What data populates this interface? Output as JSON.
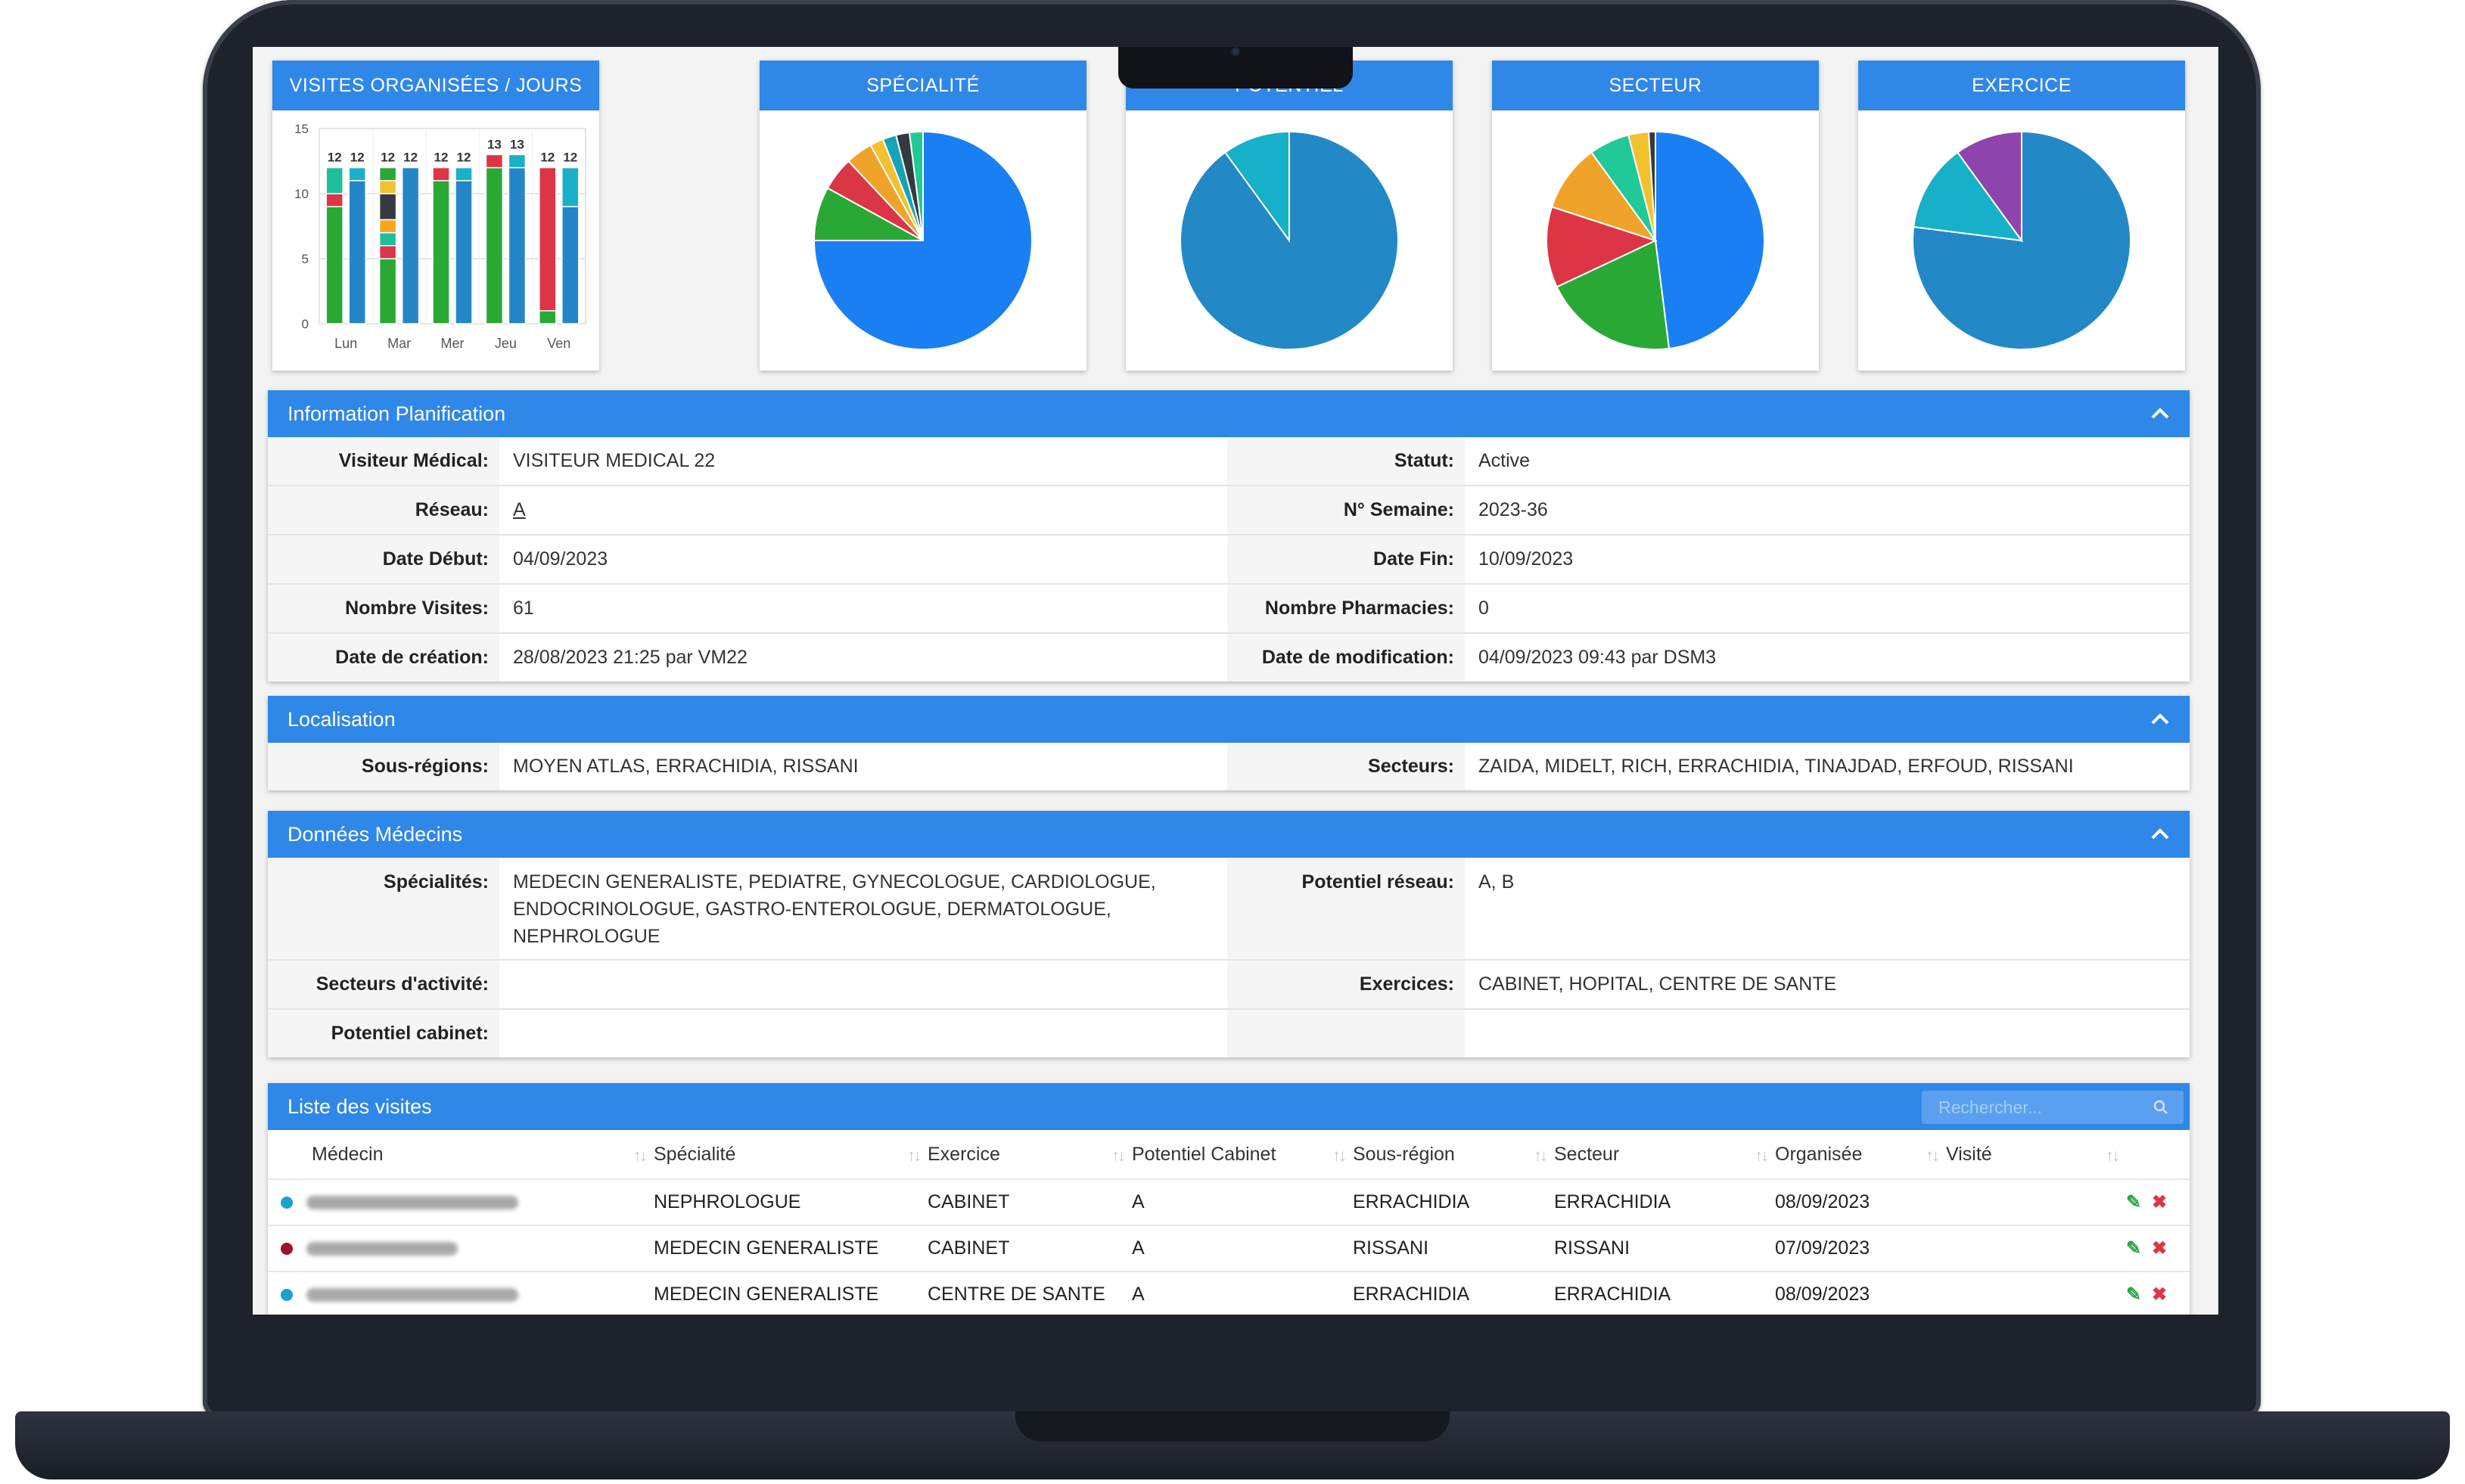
{
  "charts": {
    "bar_title": "VISITES ORGANISÉES / JOURS",
    "pie1_title": "SPÉCIALITÉ",
    "pie2_title": "POTENTIEL",
    "pie3_title": "SECTEUR",
    "pie4_title": "EXERCICE"
  },
  "chart_data": [
    {
      "type": "bar",
      "title": "VISITES ORGANISÉES / JOURS",
      "categories": [
        "Lun",
        "Mar",
        "Mer",
        "Jeu",
        "Ven"
      ],
      "ylim": [
        0,
        15
      ],
      "yticks": [
        "15",
        "10",
        "5",
        "0"
      ],
      "stacked": true,
      "bars_per_category": [
        {
          "totals": [
            12,
            12
          ],
          "left_segments": [
            9,
            1,
            2
          ],
          "right_segments": [
            11,
            1
          ]
        },
        {
          "totals": [
            12,
            12
          ],
          "left_segments": [
            5,
            1,
            1,
            1,
            2,
            1,
            1
          ],
          "right_segments": [
            12
          ]
        },
        {
          "totals": [
            12,
            12
          ],
          "left_segments": [
            11,
            1
          ],
          "right_segments": [
            11,
            1
          ]
        },
        {
          "totals": [
            13,
            13
          ],
          "left_segments": [
            12,
            1
          ],
          "right_segments": [
            12,
            1
          ]
        },
        {
          "totals": [
            12,
            12
          ],
          "left_segments": [
            1,
            11
          ],
          "right_segments": [
            9,
            3
          ]
        }
      ],
      "segment_colors_left": [
        "#2aa836",
        "#dc3545",
        "#1fbf9c",
        "#f5a623",
        "#343a40",
        "#f2c12e"
      ],
      "segment_colors_right": [
        "#2586c7",
        "#1bb0c9"
      ]
    },
    {
      "type": "pie",
      "title": "SPÉCIALITÉ",
      "values": [
        75,
        8,
        5,
        4,
        2,
        2,
        2,
        2
      ],
      "colors": [
        "#1a7ff2",
        "#2aa836",
        "#dc3545",
        "#f0a32a",
        "#f2c12e",
        "#17a2b8",
        "#343a40",
        "#20c997"
      ]
    },
    {
      "type": "pie",
      "title": "POTENTIEL",
      "values": [
        90,
        10
      ],
      "colors": [
        "#2289c6",
        "#17b0c9"
      ]
    },
    {
      "type": "pie",
      "title": "SECTEUR",
      "values": [
        48,
        20,
        12,
        10,
        6,
        3,
        1
      ],
      "colors": [
        "#1a7ff2",
        "#2aa836",
        "#dc3545",
        "#f0a32a",
        "#20c997",
        "#f2c12e",
        "#343a40"
      ]
    },
    {
      "type": "pie",
      "title": "EXERCICE",
      "values": [
        77,
        13,
        10
      ],
      "colors": [
        "#2289c6",
        "#17b0c9",
        "#8e44ad"
      ]
    }
  ],
  "planification": {
    "title": "Information Planification",
    "visiteur_label": "Visiteur Médical:",
    "visiteur": "VISITEUR MEDICAL 22",
    "statut_label": "Statut:",
    "statut": "Active",
    "reseau_label": "Réseau:",
    "reseau": "A",
    "semaine_label": "N° Semaine:",
    "semaine": "2023-36",
    "debut_label": "Date Début:",
    "debut": "04/09/2023",
    "fin_label": "Date Fin:",
    "fin": "10/09/2023",
    "nb_visites_label": "Nombre Visites:",
    "nb_visites": "61",
    "nb_pharma_label": "Nombre Pharmacies:",
    "nb_pharma": "0",
    "creation_label": "Date de création:",
    "creation": "28/08/2023 21:25 par VM22",
    "modif_label": "Date de modification:",
    "modif": "04/09/2023 09:43 par DSM3"
  },
  "localisation": {
    "title": "Localisation",
    "sous_regions_label": "Sous-régions:",
    "sous_regions": "MOYEN ATLAS, ERRACHIDIA, RISSANI",
    "secteurs_label": "Secteurs:",
    "secteurs": "ZAIDA, MIDELT, RICH, ERRACHIDIA, TINAJDAD, ERFOUD, RISSANI"
  },
  "medecins": {
    "title": "Données Médecins",
    "specialites_label": "Spécialités:",
    "specialites_l1": "MEDECIN GENERALISTE, PEDIATRE, GYNECOLOGUE, CARDIOLOGUE,",
    "specialites_l2": "ENDOCRINOLOGUE, GASTRO-ENTEROLOGUE, DERMATOLOGUE,",
    "specialites_l3": "NEPHROLOGUE",
    "potentiel_reseau_label": "Potentiel réseau:",
    "potentiel_reseau": "A, B",
    "secteurs_activite_label": "Secteurs d'activité:",
    "secteurs_activite": "",
    "exercices_label": "Exercices:",
    "exercices": "CABINET, HOPITAL, CENTRE DE SANTE",
    "potentiel_cabinet_label": "Potentiel cabinet:",
    "potentiel_cabinet": ""
  },
  "visites": {
    "title": "Liste des visites",
    "search_placeholder": "Rechercher...",
    "columns": [
      "Médecin",
      "Spécialité",
      "Exercice",
      "Potentiel Cabinet",
      "Sous-région",
      "Secteur",
      "Organisée",
      "Visité"
    ],
    "rows": [
      {
        "dot": "#17a2d0",
        "specialite": "NEPHROLOGUE",
        "exercice": "CABINET",
        "potentiel": "A",
        "sous_region": "ERRACHIDIA",
        "secteur": "ERRACHIDIA",
        "organisee": "08/09/2023",
        "visite": ""
      },
      {
        "dot": "#a0112b",
        "specialite": "MEDECIN GENERALISTE",
        "exercice": "CABINET",
        "potentiel": "A",
        "sous_region": "RISSANI",
        "secteur": "RISSANI",
        "organisee": "07/09/2023",
        "visite": ""
      },
      {
        "dot": "#17a2d0",
        "specialite": "MEDECIN GENERALISTE",
        "exercice": "CENTRE DE SANTE",
        "potentiel": "A",
        "sous_region": "ERRACHIDIA",
        "secteur": "ERRACHIDIA",
        "organisee": "08/09/2023",
        "visite": ""
      }
    ],
    "edit_icon": "✎",
    "delete_icon": "✖"
  }
}
